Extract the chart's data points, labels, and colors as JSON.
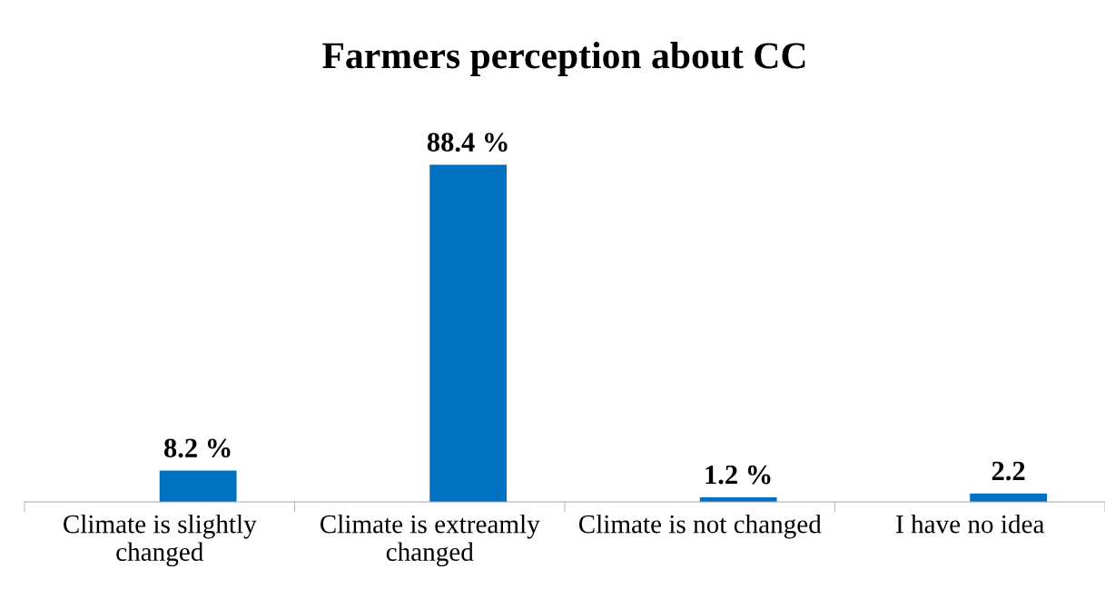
{
  "chart_data": {
    "type": "bar",
    "title": "Farmers perception about CC",
    "categories": [
      "Climate is slightly\nchanged",
      "Climate is extreamly\nchanged",
      "Climate is not changed",
      "I have no idea"
    ],
    "values": [
      8.2,
      88.4,
      1.2,
      2.2
    ],
    "value_labels": [
      "8.2 %",
      "88.4 %",
      "1.2 %",
      "2.2"
    ],
    "color": "#0070c0",
    "grid": false,
    "legend": false
  }
}
